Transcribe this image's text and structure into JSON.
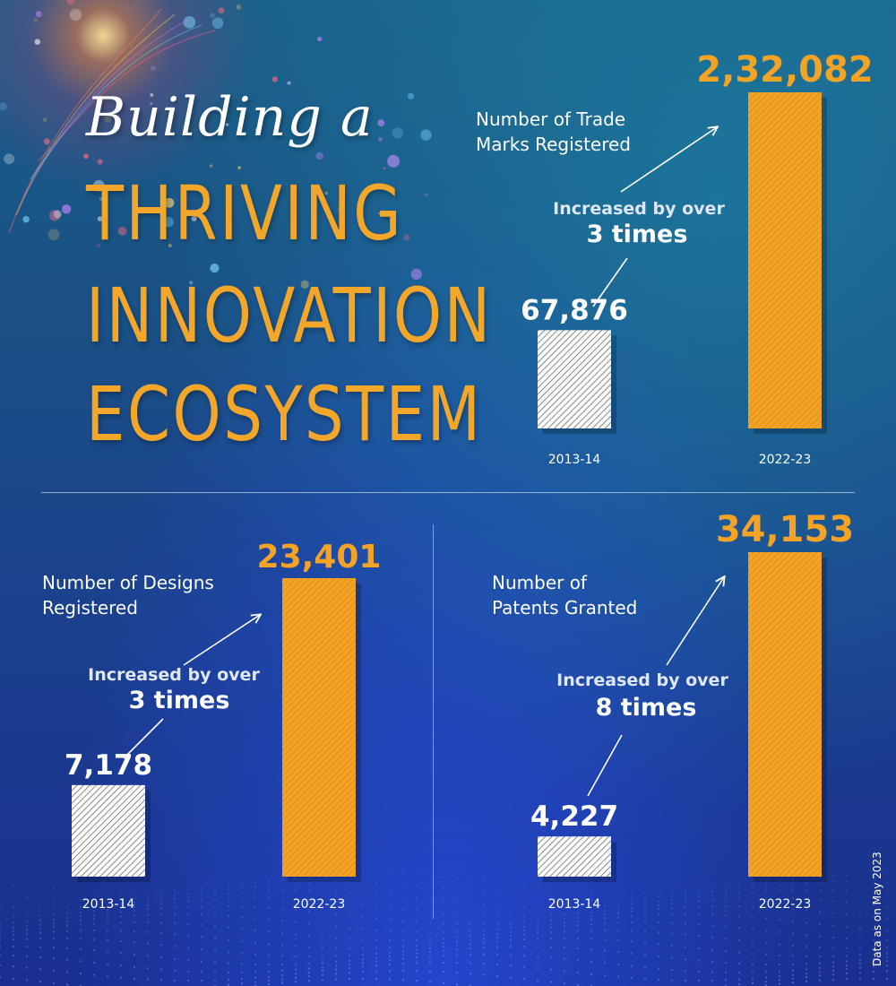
{
  "headline": {
    "line1": "Building a",
    "line2": "THRIVING",
    "line3": "INNOVATION",
    "line4": "ECOSYSTEM"
  },
  "footnote": "Data as on May 2023",
  "colors": {
    "accent": "#f4a325",
    "base_bar": "#ffffff",
    "hatch": "#555555"
  },
  "chart_data": [
    {
      "type": "bar",
      "title": "Number of Trade\nMarks Registered",
      "categories": [
        "2013-14",
        "2022-23"
      ],
      "values": [
        67876,
        232082
      ],
      "value_labels": [
        "67,876",
        "2,32,082"
      ],
      "annotation": {
        "text": "Increased by over",
        "highlight": "3 times"
      }
    },
    {
      "type": "bar",
      "title": "Number of Designs\nRegistered",
      "categories": [
        "2013-14",
        "2022-23"
      ],
      "values": [
        7178,
        23401
      ],
      "value_labels": [
        "7,178",
        "23,401"
      ],
      "annotation": {
        "text": "Increased by over",
        "highlight": "3 times"
      }
    },
    {
      "type": "bar",
      "title": "Number of\nPatents Granted",
      "categories": [
        "2013-14",
        "2022-23"
      ],
      "values": [
        4227,
        34153
      ],
      "value_labels": [
        "4,227",
        "34,153"
      ],
      "annotation": {
        "text": "Increased by over",
        "highlight": "8 times"
      }
    }
  ]
}
